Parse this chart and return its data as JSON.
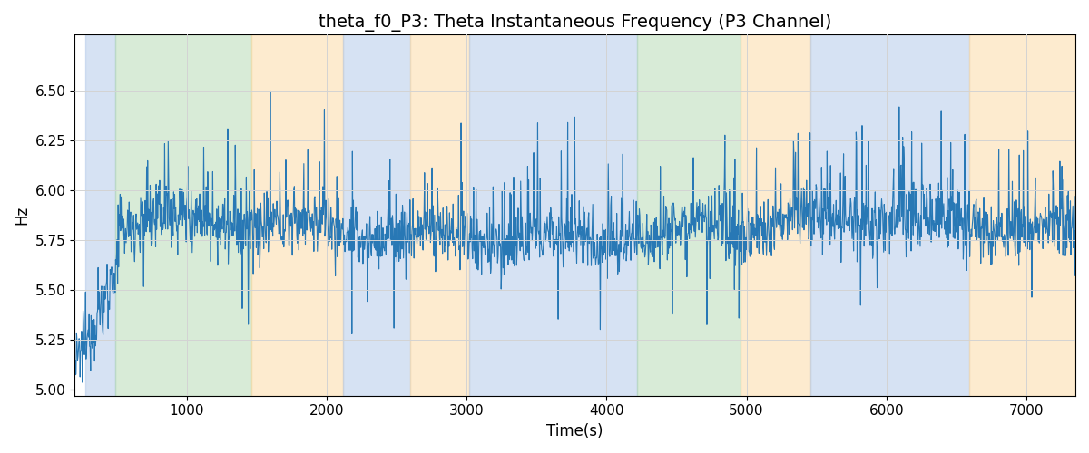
{
  "title": "theta_f0_P3: Theta Instantaneous Frequency (P3 Channel)",
  "xlabel": "Time(s)",
  "ylabel": "Hz",
  "ylim": [
    4.97,
    6.78
  ],
  "xlim": [
    200,
    7350
  ],
  "yticks": [
    5.0,
    5.25,
    5.5,
    5.75,
    6.0,
    6.25,
    6.5
  ],
  "xticks": [
    1000,
    2000,
    3000,
    4000,
    5000,
    6000,
    7000
  ],
  "line_color": "#2878b5",
  "bg_regions": [
    {
      "xmin": 280,
      "xmax": 490,
      "color": "#aec6e8",
      "alpha": 0.5
    },
    {
      "xmin": 490,
      "xmax": 1460,
      "color": "#b2d8b0",
      "alpha": 0.5
    },
    {
      "xmin": 1460,
      "xmax": 2120,
      "color": "#fdd9a0",
      "alpha": 0.5
    },
    {
      "xmin": 2120,
      "xmax": 2600,
      "color": "#aec6e8",
      "alpha": 0.5
    },
    {
      "xmin": 2600,
      "xmax": 3020,
      "color": "#fdd9a0",
      "alpha": 0.5
    },
    {
      "xmin": 3020,
      "xmax": 4100,
      "color": "#aec6e8",
      "alpha": 0.5
    },
    {
      "xmin": 4100,
      "xmax": 4220,
      "color": "#aec6e8",
      "alpha": 0.5
    },
    {
      "xmin": 4220,
      "xmax": 4960,
      "color": "#b2d8b0",
      "alpha": 0.5
    },
    {
      "xmin": 4960,
      "xmax": 5460,
      "color": "#fdd9a0",
      "alpha": 0.5
    },
    {
      "xmin": 5460,
      "xmax": 6590,
      "color": "#aec6e8",
      "alpha": 0.5
    },
    {
      "xmin": 6590,
      "xmax": 7350,
      "color": "#fdd9a0",
      "alpha": 0.5
    }
  ],
  "seed": 12345,
  "n_points": 2000,
  "title_fontsize": 14,
  "axis_fontsize": 12,
  "tick_fontsize": 11,
  "figsize": [
    12.0,
    5.0
  ],
  "dpi": 100
}
